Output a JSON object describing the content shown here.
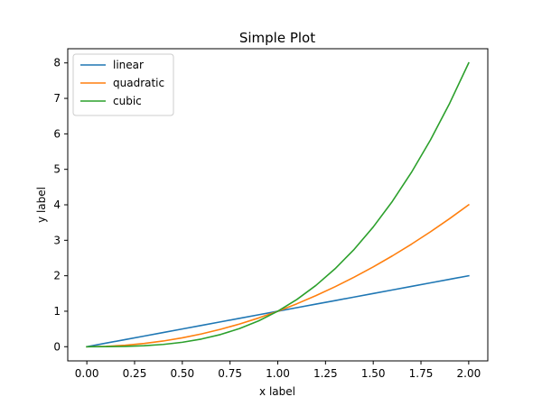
{
  "chart_data": {
    "type": "line",
    "title": "Simple Plot",
    "xlabel": "x label",
    "ylabel": "y label",
    "xlim": [
      -0.1,
      2.1
    ],
    "ylim": [
      -0.4,
      8.4
    ],
    "x_ticks": [
      "0.00",
      "0.25",
      "0.50",
      "0.75",
      "1.00",
      "1.25",
      "1.50",
      "1.75",
      "2.00"
    ],
    "y_ticks": [
      "0",
      "1",
      "2",
      "3",
      "4",
      "5",
      "6",
      "7",
      "8"
    ],
    "grid": false,
    "legend_position": "top-left",
    "x": [
      0,
      0.1,
      0.2,
      0.3,
      0.4,
      0.5,
      0.6,
      0.7,
      0.8,
      0.9,
      1.0,
      1.1,
      1.2,
      1.3,
      1.4,
      1.5,
      1.6,
      1.7,
      1.8,
      1.9,
      2.0
    ],
    "series": [
      {
        "name": "linear",
        "color": "#1f77b4",
        "values": [
          0,
          0.1,
          0.2,
          0.3,
          0.4,
          0.5,
          0.6,
          0.7,
          0.8,
          0.9,
          1.0,
          1.1,
          1.2,
          1.3,
          1.4,
          1.5,
          1.6,
          1.7,
          1.8,
          1.9,
          2.0
        ]
      },
      {
        "name": "quadratic",
        "color": "#ff7f0e",
        "values": [
          0,
          0.01,
          0.04,
          0.09,
          0.16,
          0.25,
          0.36,
          0.49,
          0.64,
          0.81,
          1.0,
          1.21,
          1.44,
          1.69,
          1.96,
          2.25,
          2.56,
          2.89,
          3.24,
          3.61,
          4.0
        ]
      },
      {
        "name": "cubic",
        "color": "#2ca02c",
        "values": [
          0,
          0.001,
          0.008,
          0.027,
          0.064,
          0.125,
          0.216,
          0.343,
          0.512,
          0.729,
          1.0,
          1.331,
          1.728,
          2.197,
          2.744,
          3.375,
          4.096,
          4.913,
          5.832,
          6.859,
          8.0
        ]
      }
    ]
  }
}
